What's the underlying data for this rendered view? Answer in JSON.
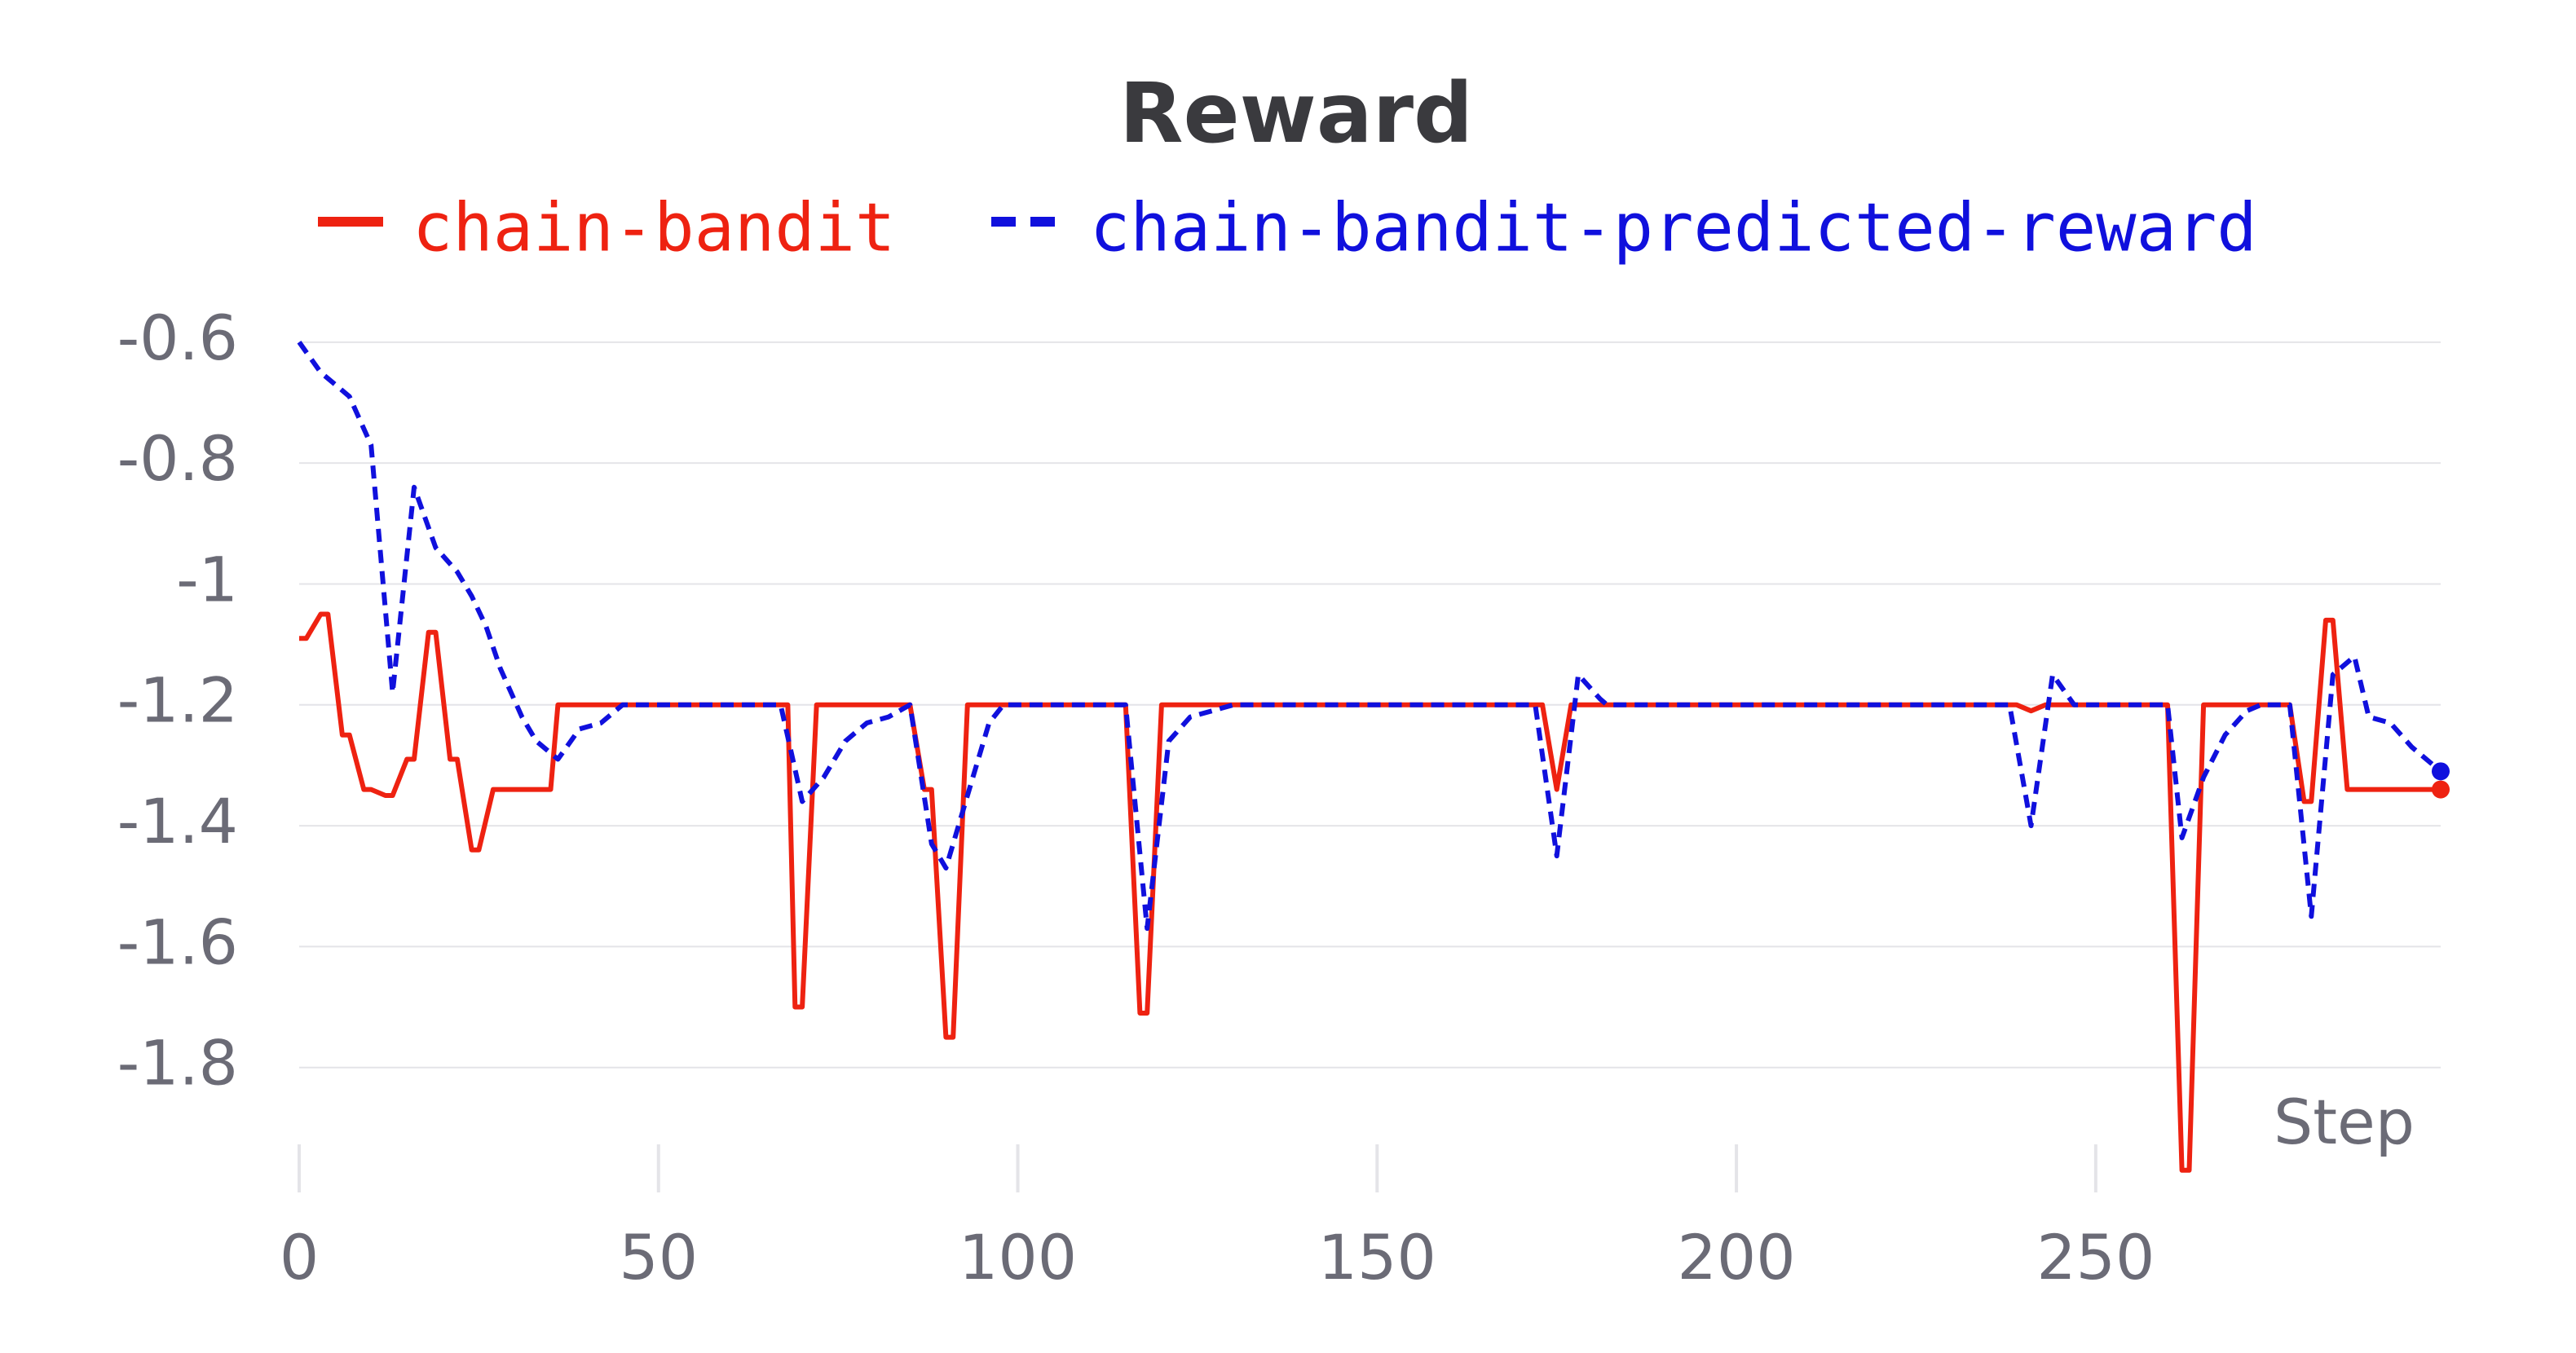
{
  "chart_data": {
    "type": "line",
    "title": "Reward",
    "x_label": "Step",
    "xlim": [
      0,
      298
    ],
    "xticks": [
      0,
      50,
      100,
      150,
      200,
      250
    ],
    "ylim": [
      -2.0,
      -0.58
    ],
    "yticks": [
      -0.6,
      -0.8,
      -1,
      -1.2,
      -1.4,
      -1.6,
      -1.8
    ],
    "grid": true,
    "legend": "top",
    "series": [
      {
        "name": "chain-bandit",
        "color": "#ee2211",
        "style": "solid",
        "x": [
          0,
          1,
          3,
          4,
          6,
          7,
          9,
          10,
          12,
          13,
          15,
          16,
          18,
          19,
          21,
          22,
          24,
          25,
          27,
          35,
          36,
          68,
          69,
          70,
          72,
          85,
          87,
          88,
          90,
          91,
          93,
          115,
          117,
          118,
          120,
          173,
          175,
          177,
          239,
          241,
          243,
          260,
          262,
          263,
          265,
          277,
          279,
          280,
          282,
          283,
          285,
          298
        ],
        "values": [
          -1.09,
          -1.09,
          -1.05,
          -1.05,
          -1.25,
          -1.25,
          -1.34,
          -1.34,
          -1.35,
          -1.35,
          -1.29,
          -1.29,
          -1.08,
          -1.08,
          -1.29,
          -1.29,
          -1.44,
          -1.44,
          -1.34,
          -1.34,
          -1.2,
          -1.2,
          -1.7,
          -1.7,
          -1.2,
          -1.2,
          -1.34,
          -1.34,
          -1.75,
          -1.75,
          -1.2,
          -1.2,
          -1.71,
          -1.71,
          -1.2,
          -1.2,
          -1.34,
          -1.2,
          -1.2,
          -1.21,
          -1.2,
          -1.2,
          -1.97,
          -1.97,
          -1.2,
          -1.2,
          -1.36,
          -1.36,
          -1.06,
          -1.06,
          -1.34,
          -1.34
        ]
      },
      {
        "name": "chain-bandit-predicted-reward",
        "color": "#1010dd",
        "style": "dashed",
        "x": [
          0,
          3,
          5,
          7,
          10,
          13,
          16,
          19,
          22,
          24,
          26,
          28,
          31,
          33,
          36,
          39,
          42,
          45,
          47,
          67,
          70,
          73,
          76,
          79,
          82,
          85,
          88,
          90,
          93,
          96,
          98,
          115,
          118,
          121,
          124,
          127,
          130,
          172,
          175,
          178,
          181,
          182,
          238,
          241,
          244,
          247,
          260,
          262,
          265,
          268,
          271,
          273,
          277,
          280,
          283,
          286,
          288,
          291,
          294,
          298
        ],
        "values": [
          -0.6,
          -0.65,
          -0.67,
          -0.69,
          -0.77,
          -1.18,
          -0.84,
          -0.94,
          -0.98,
          -1.02,
          -1.07,
          -1.14,
          -1.22,
          -1.26,
          -1.29,
          -1.24,
          -1.23,
          -1.2,
          -1.2,
          -1.2,
          -1.36,
          -1.32,
          -1.26,
          -1.23,
          -1.22,
          -1.2,
          -1.43,
          -1.47,
          -1.35,
          -1.23,
          -1.2,
          -1.2,
          -1.57,
          -1.26,
          -1.22,
          -1.21,
          -1.2,
          -1.2,
          -1.45,
          -1.15,
          -1.19,
          -1.2,
          -1.2,
          -1.4,
          -1.15,
          -1.2,
          -1.2,
          -1.42,
          -1.32,
          -1.25,
          -1.21,
          -1.2,
          -1.2,
          -1.55,
          -1.15,
          -1.12,
          -1.22,
          -1.23,
          -1.27,
          -1.31
        ]
      }
    ]
  }
}
